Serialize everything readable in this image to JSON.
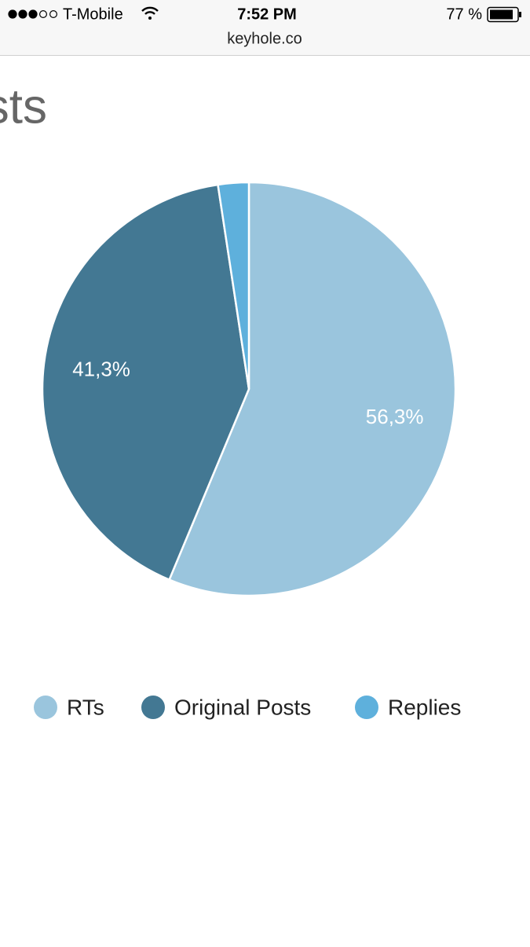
{
  "status_bar": {
    "carrier": "T-Mobile",
    "time": "7:52 PM",
    "battery": "77 %",
    "url": "keyhole.co"
  },
  "chart_data": {
    "type": "pie",
    "title": "sts",
    "categories": [
      "RTs",
      "Original Posts",
      "Replies"
    ],
    "values": [
      56.3,
      41.3,
      2.4
    ],
    "value_labels": [
      "56,3%",
      "41,3%",
      null
    ],
    "colors": [
      "#9ac5dd",
      "#437893",
      "#5eb0dc"
    ]
  }
}
